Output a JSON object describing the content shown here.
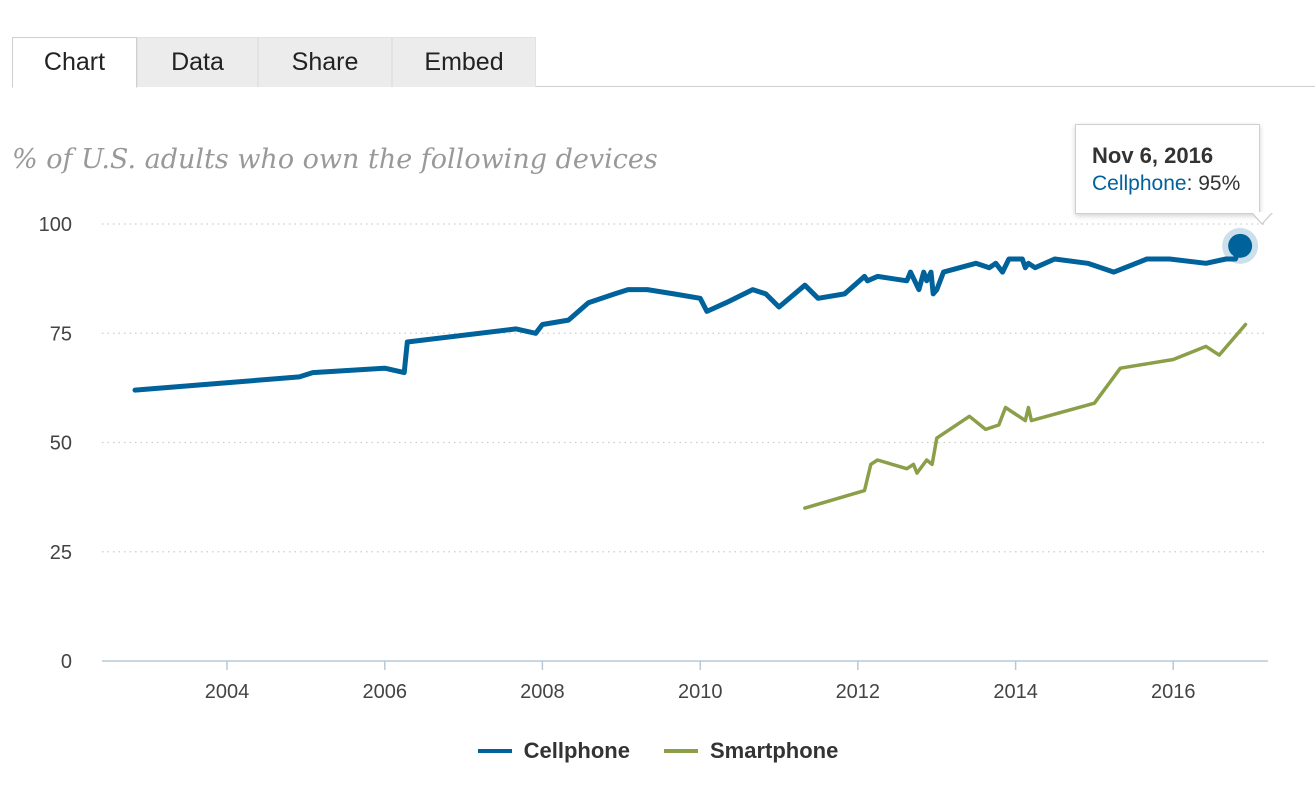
{
  "tabs": [
    {
      "label": "Chart",
      "active": true
    },
    {
      "label": "Data",
      "active": false
    },
    {
      "label": "Share",
      "active": false
    },
    {
      "label": "Embed",
      "active": false
    }
  ],
  "subtitle": "% of U.S. adults who own the following devices",
  "tooltip": {
    "date": "Nov 6, 2016",
    "series": "Cellphone",
    "sep": ": ",
    "value": "95%"
  },
  "colors": {
    "cellphone": "#00629b",
    "smartphone": "#8a9f48",
    "grid": "#cccccc",
    "axis": "#b8c8d6"
  },
  "chart_data": {
    "type": "line",
    "ylim": [
      0,
      100
    ],
    "yticks": [
      0,
      25,
      50,
      75,
      100
    ],
    "xticks": [
      "2004",
      "2006",
      "2008",
      "2010",
      "2012",
      "2014",
      "2016"
    ],
    "xlim": [
      "2002-06-01",
      "2017-03-15"
    ],
    "grid": "horizontal dotted",
    "legend_position": "bottom",
    "highlight": {
      "series": "Cellphone",
      "date": "2016-11-06",
      "value": 95
    },
    "series": [
      {
        "name": "Cellphone",
        "color": "#00629b",
        "points": [
          [
            "2002-11-01",
            62
          ],
          [
            "2004-12-01",
            65
          ],
          [
            "2005-02-01",
            66
          ],
          [
            "2006-01-01",
            67
          ],
          [
            "2006-04-01",
            66
          ],
          [
            "2006-04-15",
            73
          ],
          [
            "2007-09-01",
            76
          ],
          [
            "2007-12-01",
            75
          ],
          [
            "2008-01-01",
            77
          ],
          [
            "2008-05-01",
            78
          ],
          [
            "2008-08-01",
            82
          ],
          [
            "2008-12-01",
            84
          ],
          [
            "2009-02-01",
            85
          ],
          [
            "2009-05-01",
            85
          ],
          [
            "2009-09-01",
            84
          ],
          [
            "2010-01-01",
            83
          ],
          [
            "2010-02-01",
            80
          ],
          [
            "2010-05-01",
            82
          ],
          [
            "2010-09-01",
            85
          ],
          [
            "2010-11-01",
            84
          ],
          [
            "2011-01-01",
            81
          ],
          [
            "2011-05-01",
            86
          ],
          [
            "2011-07-01",
            83
          ],
          [
            "2011-11-01",
            84
          ],
          [
            "2012-02-01",
            88
          ],
          [
            "2012-02-15",
            87
          ],
          [
            "2012-04-01",
            88
          ],
          [
            "2012-08-15",
            87
          ],
          [
            "2012-09-01",
            89
          ],
          [
            "2012-10-10",
            85
          ],
          [
            "2012-11-01",
            89
          ],
          [
            "2012-11-15",
            87
          ],
          [
            "2012-12-05",
            89
          ],
          [
            "2012-12-15",
            84
          ],
          [
            "2013-01-01",
            85
          ],
          [
            "2013-02-01",
            89
          ],
          [
            "2013-07-01",
            91
          ],
          [
            "2013-09-01",
            90
          ],
          [
            "2013-10-01",
            91
          ],
          [
            "2013-11-01",
            89
          ],
          [
            "2013-12-01",
            92
          ],
          [
            "2014-02-01",
            92
          ],
          [
            "2014-02-15",
            90
          ],
          [
            "2014-03-01",
            91
          ],
          [
            "2014-04-01",
            90
          ],
          [
            "2014-07-01",
            92
          ],
          [
            "2014-12-01",
            91
          ],
          [
            "2015-04-01",
            89
          ],
          [
            "2015-09-01",
            92
          ],
          [
            "2015-12-15",
            92
          ],
          [
            "2016-06-01",
            91
          ],
          [
            "2016-09-01",
            92
          ],
          [
            "2016-10-15",
            92
          ],
          [
            "2016-11-06",
            95
          ]
        ]
      },
      {
        "name": "Smartphone",
        "color": "#8a9f48",
        "points": [
          [
            "2011-05-01",
            35
          ],
          [
            "2012-02-01",
            39
          ],
          [
            "2012-03-01",
            45
          ],
          [
            "2012-04-01",
            46
          ],
          [
            "2012-08-15",
            44
          ],
          [
            "2012-09-15",
            45
          ],
          [
            "2012-10-01",
            43
          ],
          [
            "2012-11-15",
            46
          ],
          [
            "2012-12-10",
            45
          ],
          [
            "2013-01-01",
            51
          ],
          [
            "2013-06-01",
            56
          ],
          [
            "2013-08-15",
            53
          ],
          [
            "2013-10-15",
            54
          ],
          [
            "2013-11-15",
            58
          ],
          [
            "2014-02-15",
            55
          ],
          [
            "2014-03-01",
            58
          ],
          [
            "2014-03-15",
            55
          ],
          [
            "2015-01-01",
            59
          ],
          [
            "2015-05-01",
            67
          ],
          [
            "2015-09-01",
            68
          ],
          [
            "2016-01-01",
            69
          ],
          [
            "2016-06-01",
            72
          ],
          [
            "2016-08-01",
            70
          ],
          [
            "2016-12-01",
            77
          ]
        ]
      }
    ]
  }
}
